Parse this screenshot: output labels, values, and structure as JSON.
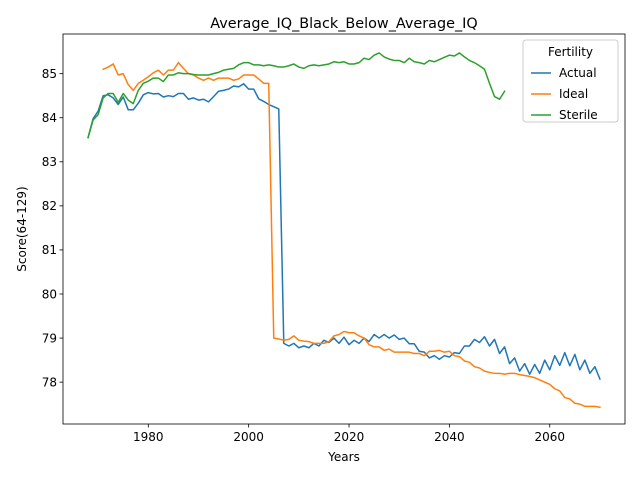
{
  "chart_data": {
    "type": "line",
    "title": "Average_IQ_Black_Below_Average_IQ",
    "xlabel": "Years",
    "ylabel": "Score(64-129)",
    "xlim": [
      1963,
      2075
    ],
    "ylim": [
      77.05,
      85.9
    ],
    "xticks": [
      1980,
      2000,
      2020,
      2040,
      2060
    ],
    "yticks": [
      78,
      79,
      80,
      81,
      82,
      83,
      84,
      85
    ],
    "grid": false,
    "legend": {
      "title": "Fertility",
      "placement": "top-right"
    },
    "series": [
      {
        "name": "Actual",
        "color": "#1f77b4",
        "x": [
          1968,
          1969,
          1970,
          1971,
          1972,
          1973,
          1974,
          1975,
          1976,
          1977,
          1978,
          1979,
          1980,
          1981,
          1982,
          1983,
          1984,
          1985,
          1986,
          1987,
          1988,
          1989,
          1990,
          1991,
          1992,
          1993,
          1994,
          1995,
          1996,
          1997,
          1998,
          1999,
          2000,
          2001,
          2002,
          2003,
          2004,
          2005,
          2006,
          2007,
          2008,
          2009,
          2010,
          2011,
          2012,
          2013,
          2014,
          2015,
          2016,
          2017,
          2018,
          2019,
          2020,
          2021,
          2022,
          2023,
          2024,
          2025,
          2026,
          2027,
          2028,
          2029,
          2030,
          2031,
          2032,
          2033,
          2034,
          2035,
          2036,
          2037,
          2038,
          2039,
          2040,
          2041,
          2042,
          2043,
          2044,
          2045,
          2046,
          2047,
          2048,
          2049,
          2050,
          2051,
          2052,
          2053,
          2054,
          2055,
          2056,
          2057,
          2058,
          2059,
          2060,
          2061,
          2062,
          2063,
          2064,
          2065,
          2066,
          2067,
          2068,
          2069,
          2070
        ],
        "y": [
          83.55,
          83.98,
          84.15,
          84.5,
          84.52,
          84.45,
          84.3,
          84.47,
          84.18,
          84.18,
          84.33,
          84.52,
          84.57,
          84.54,
          84.55,
          84.47,
          84.5,
          84.48,
          84.55,
          84.55,
          84.42,
          84.45,
          84.4,
          84.42,
          84.36,
          84.48,
          84.6,
          84.62,
          84.65,
          84.72,
          84.7,
          84.77,
          84.65,
          84.65,
          84.43,
          84.37,
          84.3,
          84.25,
          84.2,
          78.88,
          78.82,
          78.88,
          78.78,
          78.82,
          78.78,
          78.88,
          78.82,
          78.95,
          78.9,
          79.0,
          78.88,
          79.02,
          78.85,
          78.95,
          78.88,
          79.0,
          78.92,
          79.08,
          79.0,
          79.08,
          79.0,
          79.07,
          78.97,
          79.0,
          78.87,
          78.87,
          78.7,
          78.68,
          78.55,
          78.6,
          78.52,
          78.6,
          78.57,
          78.67,
          78.65,
          78.82,
          78.82,
          78.97,
          78.9,
          79.03,
          78.82,
          78.97,
          78.65,
          78.8,
          78.42,
          78.55,
          78.25,
          78.42,
          78.18,
          78.4,
          78.2,
          78.5,
          78.28,
          78.6,
          78.38,
          78.67,
          78.37,
          78.63,
          78.28,
          78.5,
          78.2,
          78.35,
          78.07
        ]
      },
      {
        "name": "Ideal",
        "color": "#ff7f0e",
        "x": [
          1971,
          1972,
          1973,
          1974,
          1975,
          1976,
          1977,
          1978,
          1979,
          1980,
          1981,
          1982,
          1983,
          1984,
          1985,
          1986,
          1987,
          1988,
          1989,
          1990,
          1991,
          1992,
          1993,
          1994,
          1995,
          1996,
          1997,
          1998,
          1999,
          2000,
          2001,
          2002,
          2003,
          2004,
          2005,
          2006,
          2007,
          2008,
          2009,
          2010,
          2011,
          2012,
          2013,
          2014,
          2015,
          2016,
          2017,
          2018,
          2019,
          2020,
          2021,
          2022,
          2023,
          2024,
          2025,
          2026,
          2027,
          2028,
          2029,
          2030,
          2031,
          2032,
          2033,
          2034,
          2035,
          2036,
          2037,
          2038,
          2039,
          2040,
          2041,
          2042,
          2043,
          2044,
          2045,
          2046,
          2047,
          2048,
          2049,
          2050,
          2051,
          2052,
          2053,
          2054,
          2055,
          2056,
          2057,
          2058,
          2059,
          2060,
          2061,
          2062,
          2063,
          2064,
          2065,
          2066,
          2067,
          2068,
          2069,
          2070
        ],
        "y": [
          85.1,
          85.15,
          85.22,
          84.97,
          85.0,
          84.75,
          84.62,
          84.78,
          84.85,
          84.93,
          85.02,
          85.08,
          84.97,
          85.08,
          85.08,
          85.25,
          85.12,
          85.0,
          84.97,
          84.9,
          84.85,
          84.9,
          84.85,
          84.9,
          84.9,
          84.9,
          84.85,
          84.88,
          84.97,
          84.97,
          84.97,
          84.88,
          84.78,
          84.78,
          79.0,
          78.98,
          78.95,
          78.97,
          79.05,
          78.95,
          78.93,
          78.92,
          78.88,
          78.88,
          78.88,
          78.92,
          79.05,
          79.08,
          79.15,
          79.12,
          79.12,
          79.05,
          79.0,
          78.85,
          78.8,
          78.8,
          78.72,
          78.75,
          78.68,
          78.68,
          78.68,
          78.68,
          78.65,
          78.65,
          78.6,
          78.7,
          78.7,
          78.72,
          78.68,
          78.7,
          78.6,
          78.58,
          78.48,
          78.45,
          78.35,
          78.32,
          78.25,
          78.22,
          78.2,
          78.2,
          78.18,
          78.2,
          78.2,
          78.17,
          78.15,
          78.13,
          78.1,
          78.05,
          78.0,
          77.95,
          77.85,
          77.8,
          77.65,
          77.62,
          77.52,
          77.5,
          77.45,
          77.45,
          77.45,
          77.43
        ]
      },
      {
        "name": "Sterile",
        "color": "#2ca02c",
        "x": [
          1968,
          1969,
          1970,
          1971,
          1972,
          1973,
          1974,
          1975,
          1976,
          1977,
          1978,
          1979,
          1980,
          1981,
          1982,
          1983,
          1984,
          1985,
          1986,
          1987,
          1988,
          1989,
          1990,
          1991,
          1992,
          1993,
          1994,
          1995,
          1996,
          1997,
          1998,
          1999,
          2000,
          2001,
          2002,
          2003,
          2004,
          2005,
          2006,
          2007,
          2008,
          2009,
          2010,
          2011,
          2012,
          2013,
          2014,
          2015,
          2016,
          2017,
          2018,
          2019,
          2020,
          2021,
          2022,
          2023,
          2024,
          2025,
          2026,
          2027,
          2028,
          2029,
          2030,
          2031,
          2032,
          2033,
          2034,
          2035,
          2036,
          2037,
          2038,
          2039,
          2040,
          2041,
          2042,
          2043,
          2044,
          2045,
          2046,
          2047,
          2048,
          2049,
          2050,
          2051
        ],
        "y": [
          83.55,
          83.95,
          84.07,
          84.45,
          84.55,
          84.55,
          84.35,
          84.55,
          84.4,
          84.32,
          84.62,
          84.78,
          84.83,
          84.9,
          84.9,
          84.82,
          84.97,
          84.97,
          85.02,
          85.0,
          85.0,
          84.98,
          84.97,
          84.97,
          84.97,
          85.0,
          85.03,
          85.08,
          85.1,
          85.12,
          85.2,
          85.25,
          85.25,
          85.2,
          85.2,
          85.18,
          85.2,
          85.18,
          85.15,
          85.15,
          85.18,
          85.22,
          85.15,
          85.12,
          85.18,
          85.2,
          85.18,
          85.2,
          85.22,
          85.27,
          85.25,
          85.27,
          85.22,
          85.22,
          85.25,
          85.35,
          85.32,
          85.42,
          85.47,
          85.38,
          85.33,
          85.3,
          85.3,
          85.25,
          85.35,
          85.27,
          85.25,
          85.22,
          85.3,
          85.27,
          85.32,
          85.37,
          85.42,
          85.4,
          85.47,
          85.38,
          85.3,
          85.25,
          85.18,
          85.1,
          84.78,
          84.48,
          84.42,
          84.6
        ]
      }
    ]
  }
}
